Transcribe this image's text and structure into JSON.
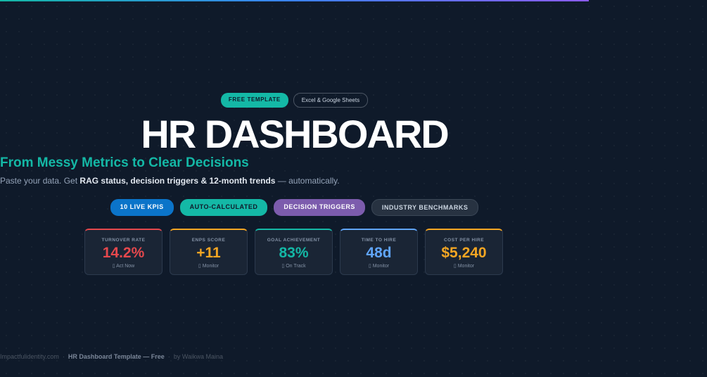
{
  "badges": {
    "free": "FREE TEMPLATE",
    "platform": "Excel & Google Sheets"
  },
  "title": "HR DASHBOARD",
  "subtitle": "From Messy Metrics to Clear Decisions",
  "description": {
    "pre": "Paste your data. Get ",
    "bold": "RAG status, decision triggers & 12-month trends",
    "post": " — automatically."
  },
  "pills": [
    {
      "label": "10 LIVE KPIS",
      "color": "#0b74c9"
    },
    {
      "label": "AUTO-CALCULATED",
      "color": "#14b8a6"
    },
    {
      "label": "DECISION TRIGGERS",
      "color": "#7c5cad"
    },
    {
      "label": "INDUSTRY BENCHMARKS",
      "color": "#273241"
    }
  ],
  "kpis": [
    {
      "label": "TURNOVER RATE",
      "value": "14.2%",
      "status": "▯ Act Now",
      "color": "#e5484d"
    },
    {
      "label": "ENPS SCORE",
      "value": "+11",
      "status": "▯ Monitor",
      "color": "#f5a623"
    },
    {
      "label": "GOAL ACHIEVEMENT",
      "value": "83%",
      "status": "▯ On Track",
      "color": "#14b8a6"
    },
    {
      "label": "TIME TO HIRE",
      "value": "48d",
      "status": "▯ Monitor",
      "color": "#60a5fa"
    },
    {
      "label": "COST PER HIRE",
      "value": "$5,240",
      "status": "▯ Monitor",
      "color": "#f5a623"
    }
  ],
  "footer": {
    "site": "Impactfulidentity.com",
    "sep": "·",
    "name": "HR Dashboard Template — Free",
    "author": "by Waikwa Maina"
  }
}
